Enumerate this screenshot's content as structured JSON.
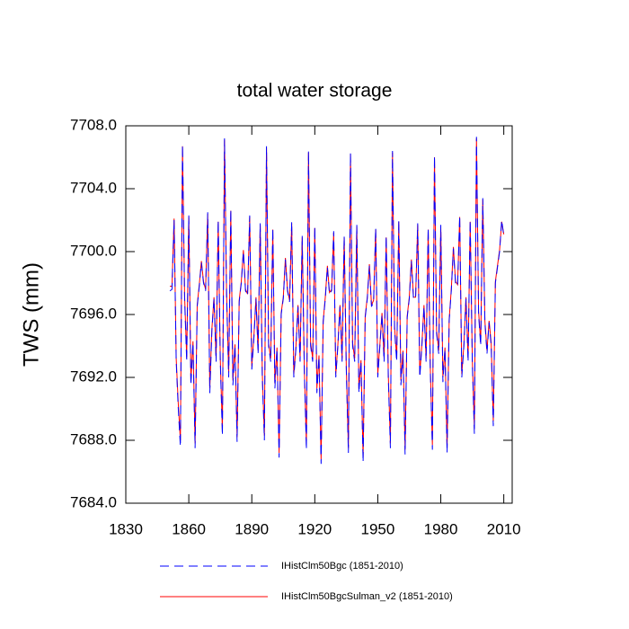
{
  "chart_data": {
    "type": "line",
    "title": "total water storage",
    "y_label": "TWS  (mm)",
    "x": [
      1851,
      1852,
      1853,
      1854,
      1855,
      1856,
      1857,
      1858,
      1859,
      1860,
      1861,
      1862,
      1863,
      1864,
      1865,
      1866,
      1867,
      1868,
      1869,
      1870,
      1871,
      1872,
      1873,
      1874,
      1875,
      1876,
      1877,
      1878,
      1879,
      1880,
      1881,
      1882,
      1883,
      1884,
      1885,
      1886,
      1887,
      1888,
      1889,
      1890,
      1891,
      1892,
      1893,
      1894,
      1895,
      1896,
      1897,
      1898,
      1899,
      1900,
      1901,
      1902,
      1903,
      1904,
      1905,
      1906,
      1907,
      1908,
      1909,
      1910,
      1911,
      1912,
      1913,
      1914,
      1915,
      1916,
      1917,
      1918,
      1919,
      1920,
      1921,
      1922,
      1923,
      1924,
      1925,
      1926,
      1927,
      1928,
      1929,
      1930,
      1931,
      1932,
      1933,
      1934,
      1935,
      1936,
      1937,
      1938,
      1939,
      1940,
      1941,
      1942,
      1943,
      1944,
      1945,
      1946,
      1947,
      1948,
      1949,
      1950,
      1951,
      1952,
      1953,
      1954,
      1955,
      1956,
      1957,
      1958,
      1959,
      1960,
      1961,
      1962,
      1963,
      1964,
      1965,
      1966,
      1967,
      1968,
      1969,
      1970,
      1971,
      1972,
      1973,
      1974,
      1975,
      1976,
      1977,
      1978,
      1979,
      1980,
      1981,
      1982,
      1983,
      1984,
      1985,
      1986,
      1987,
      1988,
      1989,
      1990,
      1991,
      1992,
      1993,
      1994,
      1995,
      1996,
      1997,
      1998,
      1999,
      2000,
      2001,
      2002,
      2003,
      2004,
      2005,
      2006,
      2007,
      2008,
      2009,
      2010
    ],
    "series": [
      {
        "name": "IHistClm50Bgc (1851-2010)",
        "color": "#0000ff",
        "dashed": true,
        "values": [
          7697.5,
          7697.6,
          7702.0,
          7693.0,
          7690.0,
          7687.6,
          7706.8,
          7697.0,
          7693.0,
          7702.3,
          7691.5,
          7694.2,
          7687.5,
          7696.5,
          7697.8,
          7699.3,
          7698.0,
          7697.5,
          7702.5,
          7691.0,
          7695.0,
          7697.0,
          7693.0,
          7702.0,
          7693.0,
          7688.3,
          7707.2,
          7697.2,
          7692.0,
          7702.7,
          7691.5,
          7694.0,
          7687.9,
          7696.8,
          7698.0,
          7700.0,
          7697.5,
          7697.2,
          7702.3,
          7692.5,
          7694.5,
          7697.0,
          7693.5,
          7701.8,
          7692.0,
          7688.0,
          7706.7,
          7694.0,
          7693.0,
          7701.5,
          7691.3,
          7693.8,
          7686.9,
          7696.0,
          7697.0,
          7699.5,
          7697.5,
          7696.8,
          7701.9,
          7692.0,
          7693.8,
          7696.5,
          7693.0,
          7701.0,
          7692.5,
          7687.4,
          7706.4,
          7694.0,
          7693.0,
          7701.6,
          7691.0,
          7693.3,
          7686.5,
          7695.5,
          7697.0,
          7699.0,
          7697.3,
          7697.5,
          7701.3,
          7692.0,
          7694.0,
          7696.5,
          7693.0,
          7701.0,
          7692.5,
          7687.2,
          7706.3,
          7694.0,
          7693.0,
          7701.7,
          7691.0,
          7693.0,
          7686.6,
          7695.8,
          7697.0,
          7699.1,
          7696.5,
          7696.8,
          7701.5,
          7692.0,
          7694.0,
          7696.0,
          7693.0,
          7701.0,
          7692.0,
          7687.5,
          7706.4,
          7695.0,
          7693.0,
          7702.0,
          7691.5,
          7693.6,
          7687.1,
          7695.8,
          7697.0,
          7699.4,
          7697.0,
          7697.0,
          7701.8,
          7692.0,
          7694.0,
          7696.5,
          7693.0,
          7701.5,
          7692.5,
          7687.4,
          7706.1,
          7694.8,
          7693.5,
          7701.7,
          7691.7,
          7693.8,
          7687.2,
          7695.6,
          7697.5,
          7700.2,
          7698.0,
          7697.8,
          7702.3,
          7692.0,
          7694.0,
          7697.0,
          7693.0,
          7702.0,
          7693.0,
          7688.4,
          7707.3,
          7696.0,
          7694.0,
          7703.4,
          7695.5,
          7693.5,
          7695.5,
          7694.0,
          7688.9,
          7698.0,
          7699.0,
          7700.0,
          7702.0,
          7701.0
        ]
      },
      {
        "name": "IHistClm50BgcSulman_v2 (1851-2010)",
        "color": "#ff0000",
        "dashed": false,
        "values": [
          7697.8,
          7697.8,
          7702.1,
          7693.2,
          7690.3,
          7688.0,
          7706.7,
          7697.2,
          7693.3,
          7702.2,
          7691.8,
          7694.3,
          7687.8,
          7696.6,
          7697.9,
          7699.4,
          7698.1,
          7697.6,
          7702.4,
          7691.3,
          7695.1,
          7697.1,
          7693.2,
          7701.9,
          7693.2,
          7688.6,
          7707.1,
          7697.3,
          7692.3,
          7702.6,
          7691.8,
          7694.1,
          7688.2,
          7696.9,
          7698.1,
          7700.1,
          7697.6,
          7697.3,
          7702.2,
          7692.7,
          7694.6,
          7697.1,
          7693.7,
          7701.7,
          7692.3,
          7688.3,
          7706.6,
          7694.2,
          7693.2,
          7701.4,
          7691.6,
          7693.9,
          7687.2,
          7696.1,
          7697.1,
          7699.6,
          7697.6,
          7696.9,
          7701.8,
          7692.2,
          7693.9,
          7696.6,
          7693.2,
          7700.9,
          7692.7,
          7687.7,
          7706.3,
          7694.2,
          7693.2,
          7701.5,
          7691.3,
          7693.4,
          7686.8,
          7695.6,
          7697.1,
          7699.1,
          7697.4,
          7697.6,
          7701.2,
          7692.2,
          7694.1,
          7696.6,
          7693.2,
          7700.9,
          7692.7,
          7687.5,
          7706.2,
          7694.2,
          7693.2,
          7701.6,
          7691.3,
          7693.1,
          7686.9,
          7695.9,
          7697.1,
          7699.2,
          7696.6,
          7696.9,
          7701.4,
          7692.2,
          7694.1,
          7696.1,
          7693.2,
          7700.9,
          7692.2,
          7687.8,
          7706.3,
          7695.2,
          7693.2,
          7701.9,
          7691.8,
          7693.7,
          7687.4,
          7695.9,
          7697.1,
          7699.5,
          7697.1,
          7697.1,
          7701.7,
          7692.2,
          7694.1,
          7696.6,
          7693.2,
          7701.4,
          7692.7,
          7687.7,
          7706.0,
          7695.0,
          7693.7,
          7701.6,
          7692.0,
          7693.9,
          7687.5,
          7695.7,
          7697.6,
          7700.3,
          7698.1,
          7697.9,
          7702.2,
          7692.2,
          7694.1,
          7697.1,
          7693.2,
          7701.9,
          7693.2,
          7688.7,
          7707.2,
          7696.2,
          7694.2,
          7703.3,
          7695.6,
          7693.7,
          7695.6,
          7694.2,
          7689.2,
          7698.1,
          7699.1,
          7700.1,
          7701.9,
          7701.1
        ]
      }
    ],
    "xlim": [
      1830,
      2014
    ],
    "xticks": [
      1830,
      1860,
      1890,
      1920,
      1950,
      1980,
      2010
    ],
    "ylim": [
      7684,
      7708
    ],
    "yticks": [
      {
        "value": 7684,
        "label": "7684.0"
      },
      {
        "value": 7688,
        "label": "7688.0"
      },
      {
        "value": 7692,
        "label": "7692.0"
      },
      {
        "value": 7696,
        "label": "7696.0"
      },
      {
        "value": 7700,
        "label": "7700.0"
      },
      {
        "value": 7704,
        "label": "7704.0"
      },
      {
        "value": 7708,
        "label": "7708.0"
      }
    ]
  }
}
